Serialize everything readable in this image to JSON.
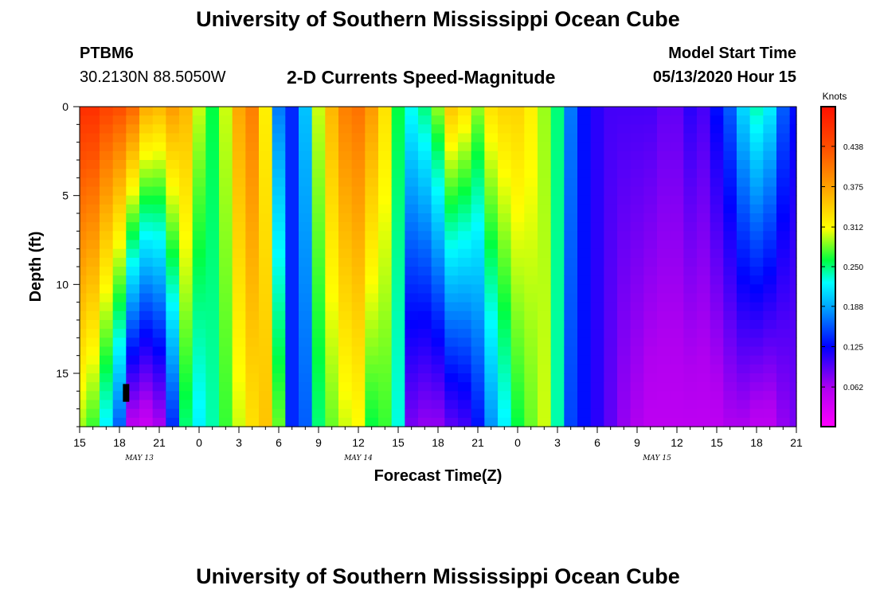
{
  "header": {
    "title_top": "University of Southern Mississippi Ocean Cube",
    "title_bottom": "University of Southern Mississippi Ocean Cube",
    "station_id": "PTBM6",
    "station_coords": "30.2130N 88.5050W",
    "plot_title": "2-D Currents Speed-Magnitude",
    "model_start_label": "Model Start Time",
    "model_start_value": "05/13/2020 Hour 15"
  },
  "chart_data": {
    "type": "heatmap",
    "title": "2-D Currents Speed-Magnitude",
    "xlabel": "Forecast Time(Z)",
    "ylabel": "Depth (ft)",
    "x_tick_labels": [
      "15",
      "18",
      "21",
      "0",
      "3",
      "6",
      "9",
      "12",
      "15",
      "18",
      "21",
      "0",
      "3",
      "6",
      "9",
      "12",
      "15",
      "18",
      "21"
    ],
    "x_range_hours": [
      0,
      54
    ],
    "date_labels": [
      {
        "text": "MAY 13",
        "hour": 4.5
      },
      {
        "text": "MAY 14",
        "hour": 21
      },
      {
        "text": "MAY 15",
        "hour": 43.5
      }
    ],
    "y_tick_labels": [
      "0",
      "5",
      "10",
      "15"
    ],
    "y_ticks": [
      0,
      5,
      10,
      15
    ],
    "y_range_ft": [
      0,
      18
    ],
    "colorbar": {
      "label": "Knots",
      "min": 0.0,
      "max": 0.5,
      "tick_values": [
        0.062,
        0.125,
        0.188,
        0.25,
        0.312,
        0.375,
        0.438
      ],
      "tick_labels": [
        "0.062",
        "0.125",
        "0.188",
        "0.250",
        "0.312",
        "0.375",
        "0.438"
      ]
    },
    "column_hours": [
      0,
      1,
      2,
      3,
      4,
      5,
      6,
      7,
      8,
      9,
      10,
      11,
      12,
      13,
      14,
      15,
      16,
      17,
      18,
      19,
      20,
      21,
      22,
      23,
      24,
      25,
      26,
      27,
      28,
      29,
      30,
      31,
      32,
      33,
      34,
      35,
      36,
      37,
      38,
      39,
      40,
      41,
      42,
      43,
      44,
      45,
      46,
      47,
      48,
      49,
      50,
      51,
      52,
      53,
      54
    ],
    "surface_speed_knots": [
      0.47,
      0.47,
      0.45,
      0.44,
      0.42,
      0.37,
      0.36,
      0.38,
      0.36,
      0.3,
      0.26,
      0.3,
      0.37,
      0.4,
      0.32,
      0.17,
      0.14,
      0.2,
      0.3,
      0.36,
      0.4,
      0.41,
      0.38,
      0.33,
      0.26,
      0.23,
      0.25,
      0.29,
      0.35,
      0.33,
      0.29,
      0.33,
      0.34,
      0.34,
      0.32,
      0.29,
      0.25,
      0.17,
      0.13,
      0.11,
      0.1,
      0.1,
      0.1,
      0.1,
      0.09,
      0.09,
      0.11,
      0.1,
      0.13,
      0.16,
      0.21,
      0.24,
      0.22,
      0.16,
      0.13
    ],
    "bottom_speed_knots": [
      0.29,
      0.27,
      0.22,
      0.16,
      0.05,
      0.04,
      0.06,
      0.14,
      0.25,
      0.22,
      0.24,
      0.27,
      0.3,
      0.33,
      0.35,
      0.28,
      0.14,
      0.16,
      0.25,
      0.28,
      0.3,
      0.31,
      0.26,
      0.27,
      0.23,
      0.08,
      0.07,
      0.07,
      0.09,
      0.1,
      0.13,
      0.18,
      0.22,
      0.26,
      0.28,
      0.3,
      0.24,
      0.15,
      0.13,
      0.11,
      0.09,
      0.07,
      0.06,
      0.05,
      0.05,
      0.05,
      0.05,
      0.05,
      0.05,
      0.06,
      0.06,
      0.05,
      0.05,
      0.07,
      0.08
    ],
    "no_data_marker": {
      "hour": 3.5,
      "depth_ft": [
        15.6,
        16.6
      ]
    }
  }
}
